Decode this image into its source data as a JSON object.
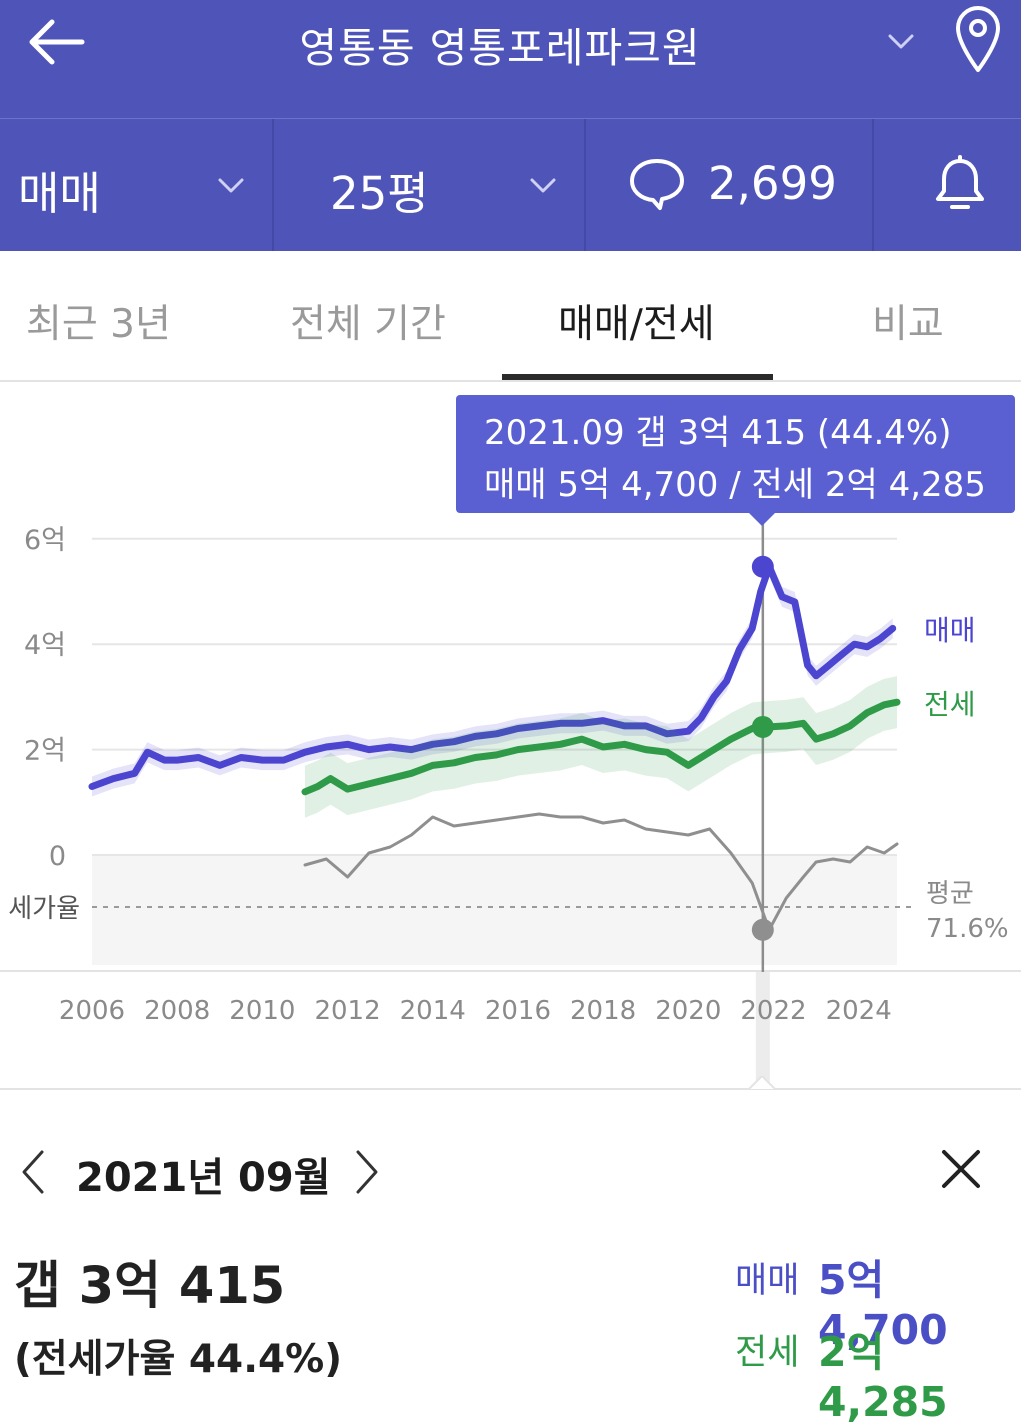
{
  "header": {
    "title": "영통동 영통포레파크원",
    "back_icon": "arrow-left-icon",
    "dropdown_icon": "chevron-down-icon",
    "location_icon": "map-pin-icon"
  },
  "filters": {
    "trade_type": "매매",
    "area": "25평",
    "comment_count": "2,699",
    "comment_icon": "speech-bubble-icon",
    "alert_icon": "bell-icon"
  },
  "tabs": {
    "items": [
      "최근 3년",
      "전체 기간",
      "매매/전세",
      "비교"
    ],
    "active_index": 2
  },
  "tooltip": {
    "line1": "2021.09  갭 3억 415 (44.4%)",
    "line2": "매매 5억 4,700 / 전세 2억 4,285"
  },
  "chart_data": {
    "type": "line",
    "x_unit": "year",
    "xlim": [
      2006.0,
      2024.9
    ],
    "x_ticks": [
      2006,
      2008,
      2010,
      2012,
      2014,
      2016,
      2018,
      2020,
      2022,
      2024
    ],
    "y_unit": "억",
    "ylim": [
      0,
      6
    ],
    "y_ticks": [
      {
        "value": 0,
        "label": "0"
      },
      {
        "value": 2,
        "label": "2억"
      },
      {
        "value": 4,
        "label": "4억"
      },
      {
        "value": 6,
        "label": "6억"
      }
    ],
    "series": [
      {
        "name": "매매",
        "color": "#4b45d0",
        "x": [
          2006.0,
          2006.5,
          2007.0,
          2007.3,
          2007.7,
          2008.0,
          2008.5,
          2009.0,
          2009.5,
          2010.0,
          2010.5,
          2011.0,
          2011.5,
          2012.0,
          2012.5,
          2013.0,
          2013.5,
          2014.0,
          2014.5,
          2015.0,
          2015.5,
          2016.0,
          2016.5,
          2017.0,
          2017.5,
          2018.0,
          2018.5,
          2019.0,
          2019.5,
          2020.0,
          2020.3,
          2020.6,
          2020.9,
          2021.2,
          2021.5,
          2021.7,
          2021.9,
          2022.2,
          2022.5,
          2022.8,
          2023.0,
          2023.3,
          2023.6,
          2023.9,
          2024.2,
          2024.5,
          2024.8
        ],
        "y": [
          1.3,
          1.45,
          1.55,
          1.95,
          1.8,
          1.8,
          1.85,
          1.7,
          1.85,
          1.8,
          1.8,
          1.95,
          2.05,
          2.1,
          2.0,
          2.05,
          2.0,
          2.1,
          2.15,
          2.25,
          2.3,
          2.4,
          2.45,
          2.5,
          2.5,
          2.55,
          2.45,
          2.45,
          2.3,
          2.35,
          2.6,
          3.0,
          3.3,
          3.9,
          4.3,
          5.0,
          5.47,
          4.9,
          4.8,
          3.6,
          3.4,
          3.6,
          3.8,
          4.0,
          3.95,
          4.1,
          4.3
        ]
      },
      {
        "name": "전세",
        "color": "#2f9a47",
        "x": [
          2011.0,
          2011.3,
          2011.6,
          2012.0,
          2012.5,
          2013.0,
          2013.5,
          2014.0,
          2014.5,
          2015.0,
          2015.5,
          2016.0,
          2016.5,
          2017.0,
          2017.5,
          2018.0,
          2018.5,
          2019.0,
          2019.5,
          2020.0,
          2020.5,
          2021.0,
          2021.5,
          2021.9,
          2022.3,
          2022.7,
          2023.0,
          2023.4,
          2023.8,
          2024.2,
          2024.6,
          2024.9
        ],
        "y": [
          1.2,
          1.3,
          1.45,
          1.25,
          1.35,
          1.45,
          1.55,
          1.7,
          1.75,
          1.85,
          1.9,
          2.0,
          2.05,
          2.1,
          2.2,
          2.05,
          2.1,
          2.0,
          1.95,
          1.7,
          1.95,
          2.2,
          2.4,
          2.43,
          2.45,
          2.5,
          2.2,
          2.3,
          2.45,
          2.7,
          2.85,
          2.9
        ]
      },
      {
        "name": "전세가율",
        "color": "#8f8f8f",
        "x": [
          2011.0,
          2011.5,
          2012.0,
          2012.5,
          2013.0,
          2013.5,
          2014.0,
          2014.5,
          2015.0,
          2015.5,
          2016.0,
          2016.5,
          2017.0,
          2017.5,
          2018.0,
          2018.5,
          2019.0,
          2019.5,
          2020.0,
          2020.5,
          2021.0,
          2021.5,
          2021.9,
          2022.3,
          2022.7,
          2023.0,
          2023.4,
          2023.8,
          2024.2,
          2024.6,
          2024.9
        ],
        "y": [
          66,
          68,
          62,
          70,
          72,
          76,
          82,
          79,
          80,
          81,
          82,
          83,
          82,
          82,
          80,
          81,
          78,
          77,
          76,
          78,
          70,
          60,
          44.4,
          55,
          62,
          67,
          68,
          67,
          72,
          70,
          73
        ]
      }
    ],
    "band_opacity": 0.15,
    "average_ratio_label": "평균",
    "average_ratio_value": "71.6%",
    "ratio_axis_label": "세가율",
    "highlight_x": 2021.75,
    "highlight_points": {
      "매매": 5.47,
      "전세": 2.43,
      "전세가율": 44.4
    }
  },
  "detail": {
    "period": "2021년 09월",
    "gap": "갭 3억 415",
    "ratio": "(전세가율 44.4%)",
    "sale_label": "매매",
    "sale_value": "5억 4,700",
    "jeonse_label": "전세",
    "jeonse_value": "2억 4,285",
    "prev_icon": "chevron-left-icon",
    "next_icon": "chevron-right-icon",
    "close_icon": "close-icon"
  }
}
